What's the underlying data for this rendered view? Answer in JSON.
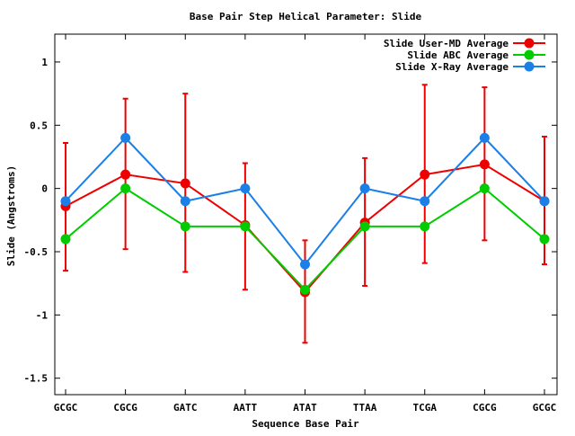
{
  "chart_data": {
    "type": "line",
    "title": "Base Pair Step Helical Parameter: Slide",
    "xlabel": "Sequence Base Pair",
    "ylabel": "Slide (Angstroms)",
    "categories": [
      "GCGC",
      "CGCG",
      "GATC",
      "AATT",
      "ATAT",
      "TTAA",
      "TCGA",
      "CGCG",
      "GCGC"
    ],
    "ylim": [
      -1.63,
      1.22
    ],
    "yticks": [
      -1.5,
      -1,
      -0.5,
      0,
      0.5,
      1
    ],
    "ytick_labels": [
      "-1.5",
      "-1",
      "-0.5",
      "0",
      "0.5",
      "1"
    ],
    "grid": false,
    "legend_position": "top-right",
    "series": [
      {
        "name": "Slide User-MD Average",
        "color": "#ee0000",
        "values": [
          -0.14,
          0.11,
          0.04,
          -0.29,
          -0.82,
          -0.27,
          0.11,
          0.19,
          -0.1
        ],
        "error_low": [
          -0.65,
          -0.48,
          -0.66,
          -0.8,
          -1.22,
          -0.77,
          -0.59,
          -0.41,
          -0.6
        ],
        "error_high": [
          0.36,
          0.71,
          0.75,
          0.2,
          -0.41,
          0.24,
          0.82,
          0.8,
          0.41
        ]
      },
      {
        "name": "Slide ABC Average",
        "color": "#00cc00",
        "values": [
          -0.4,
          0.0,
          -0.3,
          -0.3,
          -0.8,
          -0.3,
          -0.3,
          0.0,
          -0.4
        ]
      },
      {
        "name": "Slide X-Ray Average",
        "color": "#1b7fe8",
        "values": [
          -0.1,
          0.4,
          -0.1,
          0.0,
          -0.6,
          0.0,
          -0.1,
          0.4,
          -0.1
        ]
      }
    ]
  }
}
